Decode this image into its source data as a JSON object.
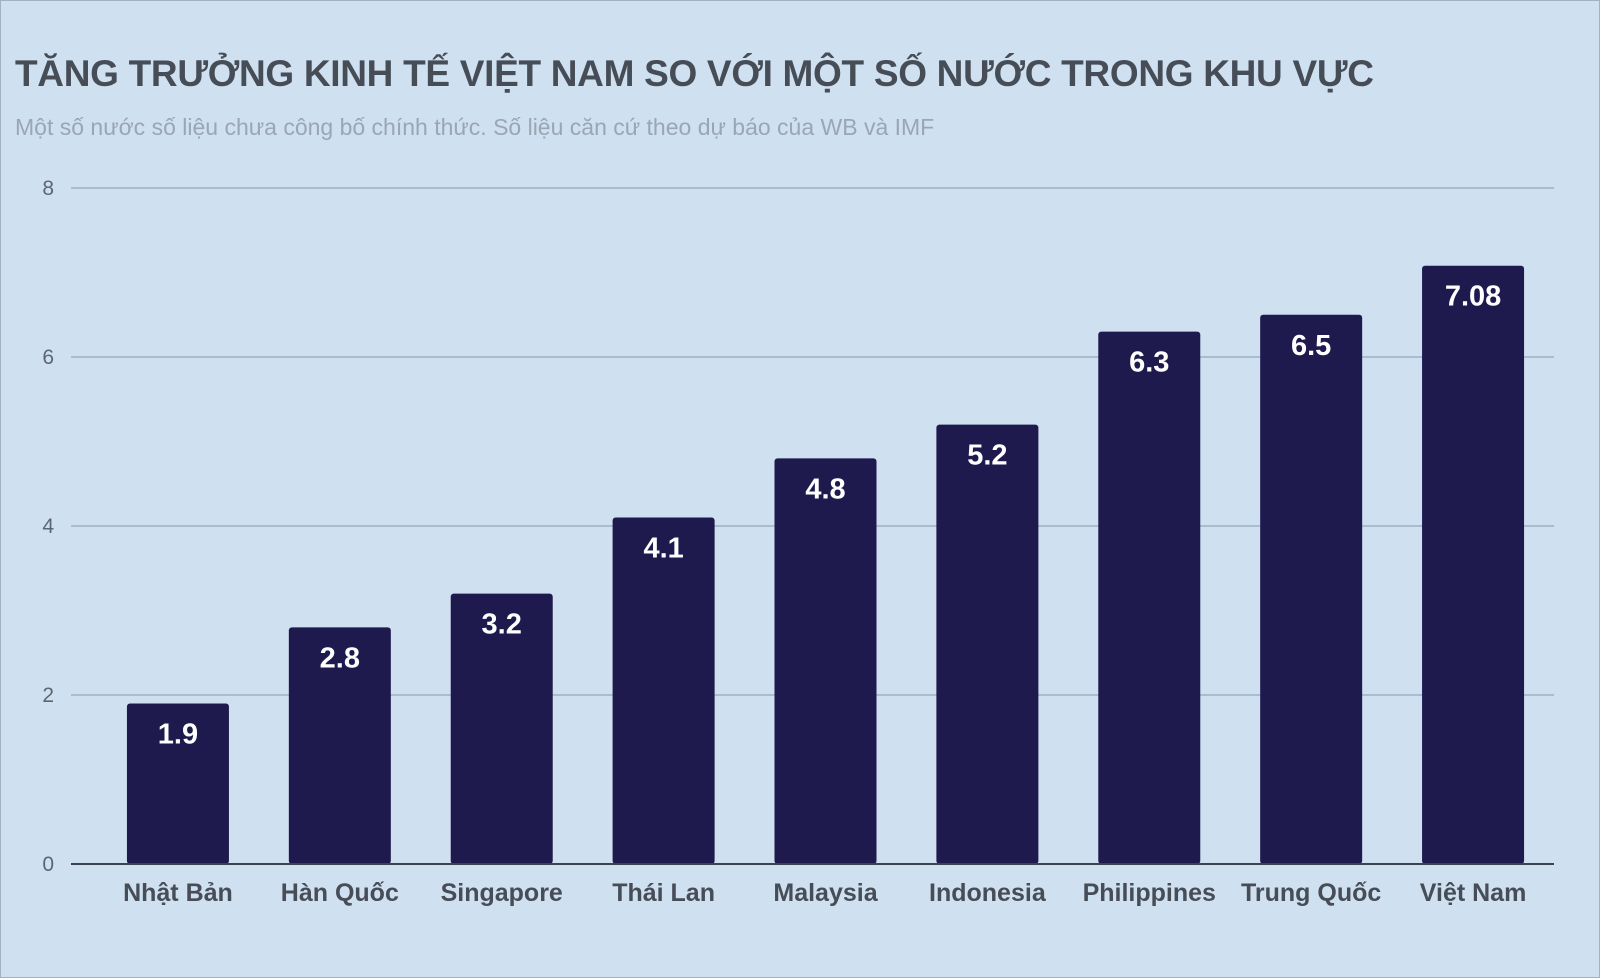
{
  "chart_data": {
    "type": "bar",
    "title": "TĂNG TRƯỞNG KINH TẾ VIỆT NAM SO VỚI MỘT SỐ NƯỚC TRONG KHU VỰC",
    "subtitle": "Một số nước số liệu chưa công bố chính thức. Số liệu căn cứ theo dự báo của WB và IMF",
    "categories": [
      "Nhật Bản",
      "Hàn Quốc",
      "Singapore",
      "Thái Lan",
      "Malaysia",
      "Indonesia",
      "Philippines",
      "Trung Quốc",
      "Việt Nam"
    ],
    "values": [
      1.9,
      2.8,
      3.2,
      4.1,
      4.8,
      5.2,
      6.3,
      6.5,
      7.08
    ],
    "data_labels": [
      "1.9",
      "2.8",
      "3.2",
      "4.1",
      "4.8",
      "5.2",
      "6.3",
      "6.5",
      "7.08"
    ],
    "ylim": [
      0,
      8
    ],
    "yticks": [
      0,
      2,
      4,
      6,
      8
    ],
    "grid": true,
    "xlabel": "",
    "ylabel": "",
    "colors": {
      "background": "#cfe0f0",
      "bar": "#1f1a4e",
      "grid": "#a9bdd1"
    }
  }
}
